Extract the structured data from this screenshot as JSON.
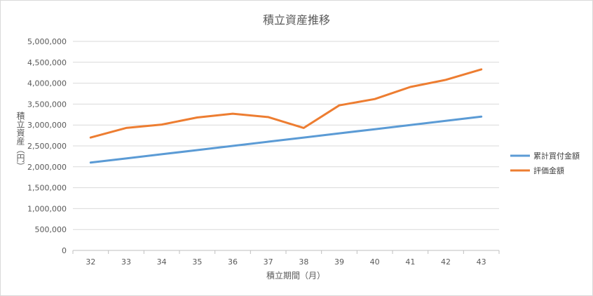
{
  "chart_data": {
    "type": "line",
    "title": "積立資産推移",
    "xlabel": "積立期間（月）",
    "ylabel": "積立資産（円）",
    "categories": [
      "32",
      "33",
      "34",
      "35",
      "36",
      "37",
      "38",
      "39",
      "40",
      "41",
      "42",
      "43"
    ],
    "ylim": [
      0,
      5000000
    ],
    "yticks": [
      0,
      500000,
      1000000,
      1500000,
      2000000,
      2500000,
      3000000,
      3500000,
      4000000,
      4500000,
      5000000
    ],
    "ytick_labels": [
      "0",
      "500,000",
      "1,000,000",
      "1,500,000",
      "2,000,000",
      "2,500,000",
      "3,000,000",
      "3,500,000",
      "4,000,000",
      "4,500,000",
      "5,000,000"
    ],
    "grid": true,
    "legend_position": "right",
    "series": [
      {
        "name": "累計買付金額",
        "color": "#5B9BD5",
        "values": [
          2100000,
          2200000,
          2300000,
          2400000,
          2500000,
          2600000,
          2700000,
          2800000,
          2900000,
          3000000,
          3100000,
          3200000
        ]
      },
      {
        "name": "評価金額",
        "color": "#ED7D31",
        "values": [
          2700000,
          2930000,
          3010000,
          3180000,
          3270000,
          3190000,
          2930000,
          3470000,
          3620000,
          3910000,
          4080000,
          4330000
        ]
      }
    ]
  }
}
